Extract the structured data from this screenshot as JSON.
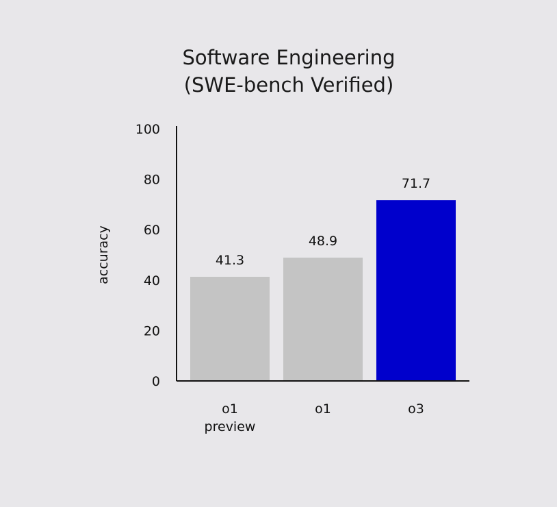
{
  "chart_data": {
    "type": "bar",
    "title": [
      "Software Engineering",
      "(SWE-bench Verified)"
    ],
    "ylabel": "accuracy",
    "xlabel": "",
    "ylim": [
      0,
      100
    ],
    "yticks": [
      "0",
      "20",
      "40",
      "60",
      "80",
      "100"
    ],
    "categories": [
      [
        "o1",
        "preview"
      ],
      [
        "o1"
      ],
      [
        "o3"
      ]
    ],
    "values": [
      41.3,
      48.9,
      71.7
    ],
    "value_labels": [
      "41.3",
      "48.9",
      "71.7"
    ],
    "colors": [
      "#c4c4c4",
      "#c4c4c4",
      "#0000cc"
    ],
    "grid": false,
    "legend": "none"
  }
}
